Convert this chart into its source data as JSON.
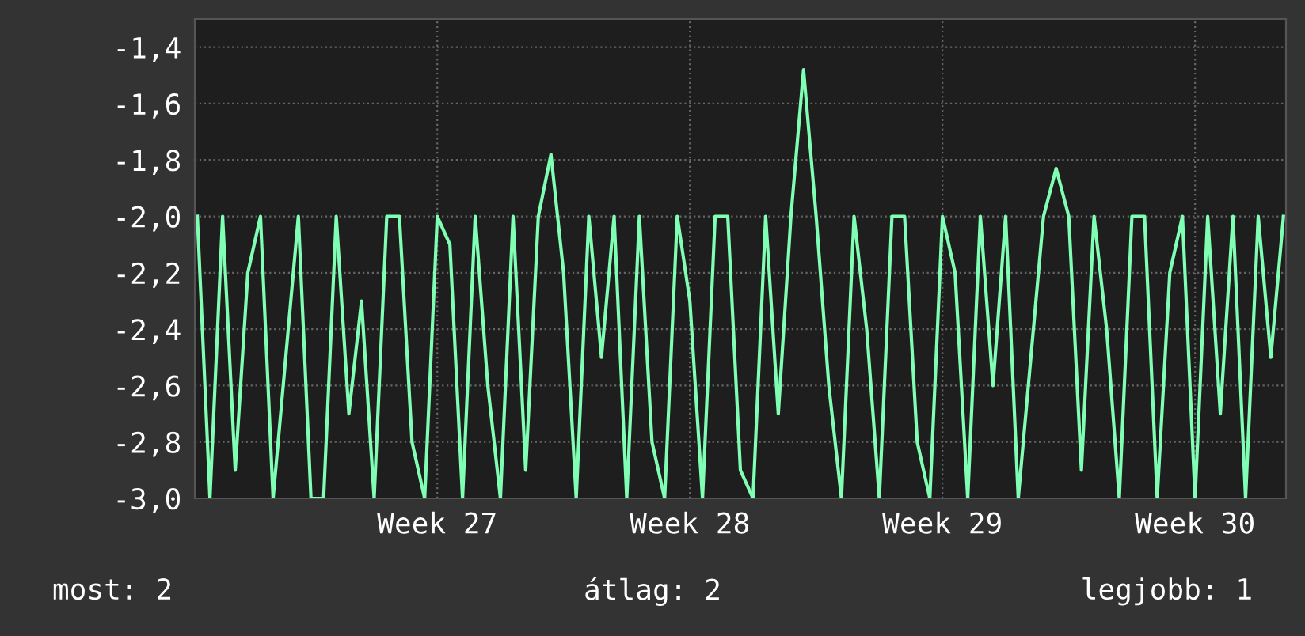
{
  "chart_data": {
    "type": "line",
    "categories": [
      null,
      null,
      null,
      null,
      null,
      null,
      null,
      null,
      null,
      null,
      null,
      null,
      null,
      null,
      null,
      null,
      null,
      null,
      null,
      "Week 27",
      null,
      null,
      null,
      null,
      null,
      null,
      null,
      null,
      null,
      null,
      null,
      null,
      null,
      null,
      null,
      null,
      null,
      null,
      null,
      "Week 28",
      null,
      null,
      null,
      null,
      null,
      null,
      null,
      null,
      null,
      null,
      null,
      null,
      null,
      null,
      null,
      null,
      null,
      null,
      null,
      "Week 29",
      null,
      null,
      null,
      null,
      null,
      null,
      null,
      null,
      null,
      null,
      null,
      null,
      null,
      null,
      null,
      null,
      null,
      null,
      null,
      "Week 30",
      null,
      null,
      null,
      null,
      null,
      null,
      null
    ],
    "series": [
      {
        "color": "#80ffb4",
        "values": [
          -2.0,
          -3.0,
          -2.0,
          -2.9,
          -2.2,
          -2.0,
          -3.0,
          -2.5,
          -2.0,
          -3.0,
          -3.0,
          -2.0,
          -2.7,
          -2.3,
          -3.0,
          -2.0,
          -2.0,
          -2.8,
          -3.0,
          -2.0,
          -2.1,
          -3.0,
          -2.0,
          -2.6,
          -3.0,
          -2.0,
          -2.9,
          -2.0,
          -1.78,
          -2.2,
          -3.0,
          -2.0,
          -2.5,
          -2.0,
          -3.0,
          -2.0,
          -2.8,
          -3.0,
          -2.0,
          -2.3,
          -3.0,
          -2.0,
          -2.0,
          -2.9,
          -3.0,
          -2.0,
          -2.7,
          -2.0,
          -1.48,
          -2.0,
          -2.6,
          -3.0,
          -2.0,
          -2.4,
          -3.0,
          -2.0,
          -2.0,
          -2.8,
          -3.0,
          -2.0,
          -2.2,
          -3.0,
          -2.0,
          -2.6,
          -2.0,
          -3.0,
          -2.5,
          -2.0,
          -1.83,
          -2.0,
          -2.9,
          -2.0,
          -2.4,
          -3.0,
          -2.0,
          -2.0,
          -3.0,
          -2.2,
          -2.0,
          -3.0,
          -2.0,
          -2.7,
          -2.0,
          -3.0,
          -2.0,
          -2.5,
          -2.0
        ]
      }
    ],
    "ylim": [
      -3.0,
      -1.3
    ],
    "yticks": [
      {
        "value": -3.0,
        "label": "-3,0"
      },
      {
        "value": -2.8,
        "label": "-2,8"
      },
      {
        "value": -2.6,
        "label": "-2,6"
      },
      {
        "value": -2.4,
        "label": "-2,4"
      },
      {
        "value": -2.2,
        "label": "-2,2"
      },
      {
        "value": -2.0,
        "label": "-2,0"
      },
      {
        "value": -1.8,
        "label": "-1,8"
      },
      {
        "value": -1.6,
        "label": "-1,6"
      },
      {
        "value": -1.4,
        "label": "-1,4"
      }
    ],
    "grid": true,
    "annotations": [
      "most: 2",
      "átlag: 2",
      "legjobb: 1"
    ]
  }
}
